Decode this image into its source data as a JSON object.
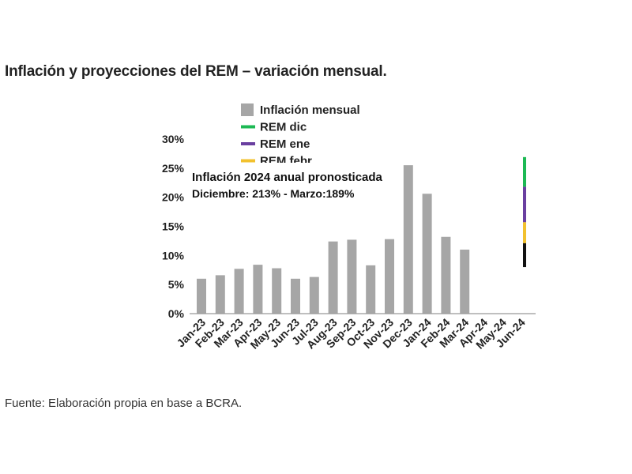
{
  "page": {
    "title": "Inflación y proyecciones del REM – variación mensual.",
    "source": "Fuente: Elaboración propia en base a BCRA."
  },
  "chart_data": {
    "type": "bar",
    "title": "Inflación y proyecciones del REM – variación mensual.",
    "xlabel": "",
    "ylabel": "",
    "ylim": [
      0,
      30
    ],
    "yticks": [
      "0%",
      "5%",
      "10%",
      "15%",
      "20%",
      "25%",
      "30%"
    ],
    "grid": false,
    "legend_position": "top",
    "categories": [
      "Jan-23",
      "Feb-23",
      "Mar-23",
      "Apr-23",
      "May-23",
      "Jun-23",
      "Jul-23",
      "Aug-23",
      "Sep-23",
      "Oct-23",
      "Nov-23",
      "Dec-23",
      "Jan-24",
      "Feb-24",
      "Mar-24",
      "Apr-24",
      "May-24",
      "Jun-24"
    ],
    "series": [
      {
        "name": "Inflación mensual",
        "color": "#a6a6a6",
        "values": [
          6.0,
          6.6,
          7.7,
          8.4,
          7.8,
          6.0,
          6.3,
          12.4,
          12.7,
          8.3,
          12.8,
          25.5,
          20.6,
          13.2,
          11.0,
          null,
          null,
          null
        ]
      }
    ],
    "legend": [
      {
        "label": "Inflación mensual",
        "color": "#a6a6a6",
        "shape": "square"
      },
      {
        "label": "REM dic",
        "color": "#1db954",
        "shape": "line"
      },
      {
        "label": "REM ene",
        "color": "#6a3fa0",
        "shape": "line"
      },
      {
        "label": "REM febr",
        "color": "#f2c12e",
        "shape": "line"
      }
    ],
    "annotation": {
      "line1": "Inflación 2024 anual pronosticada",
      "line2": "Diciembre: 213% - Marzo:189%"
    },
    "projection_segments": [
      {
        "color": "#1db954",
        "from": 21.8,
        "to": 26.9
      },
      {
        "color": "#6a3fa0",
        "from": 15.7,
        "to": 21.8
      },
      {
        "color": "#f2c12e",
        "from": 12.1,
        "to": 15.7
      },
      {
        "color": "#111111",
        "from": 8.0,
        "to": 12.1
      }
    ]
  }
}
